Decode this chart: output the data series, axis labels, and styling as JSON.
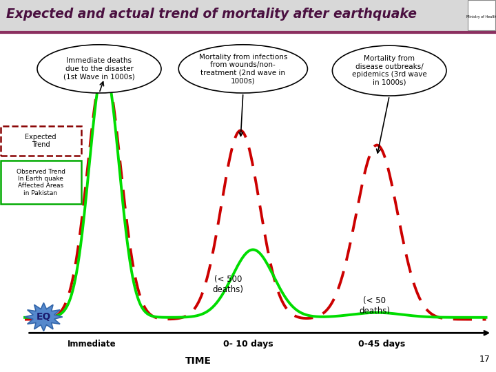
{
  "title": "Expected and actual trend of mortality after earthquake",
  "background_color": "#FFFFFF",
  "title_color": "#4A1040",
  "header_line_color": "#8B3060",
  "dashed_line_color": "#CC0000",
  "solid_line_color": "#00DD00",
  "callout1_text": "Immediate deaths\ndue to the disaster\n(1st Wave in 1000s)",
  "callout2_text": "Mortality from infections\nfrom wounds/non-\ntreatment (2nd wave in\n1000s)",
  "callout3_text": "Mortality from\ndisease outbreaks/\nepidemics (3rd wave\nin 1000s)",
  "label_immediate": "Immediate",
  "label_010": "0- 10 days",
  "label_045": "0-45 days",
  "label_500": "(< 500\ndeaths)",
  "label_50": "(< 50\ndeaths)",
  "label_time": "TIME",
  "label_eq": "EQ",
  "legend_expected": "Expected\nTrend",
  "legend_observed": "Observed Trend\nIn Earth quake\nAffected Areas\nin Pakistan",
  "legend_expected_color": "#880000",
  "legend_observed_color": "#00AA00",
  "eq_star_color": "#5588CC",
  "eq_star_edge": "#3366AA",
  "page_number": "17"
}
